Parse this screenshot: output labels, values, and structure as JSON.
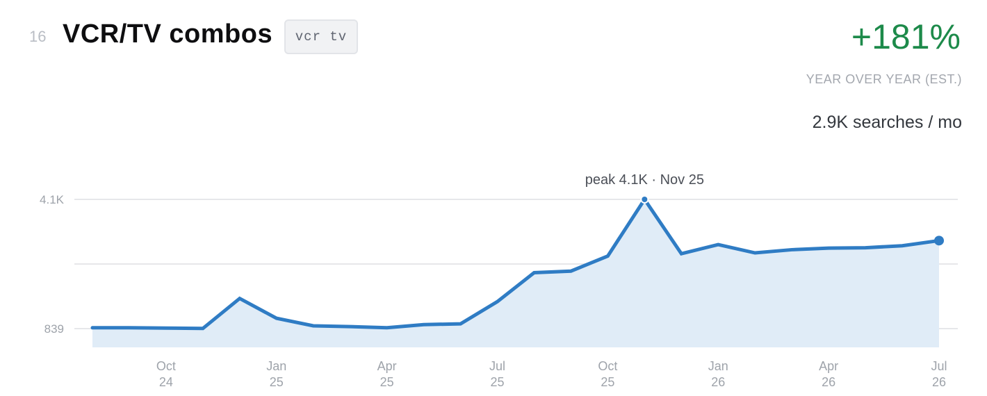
{
  "header": {
    "rank": "16",
    "title": "VCR/TV combos",
    "tag": "vcr tv"
  },
  "stats": {
    "growth": "+181%",
    "growth_label": "YEAR OVER YEAR  (EST.)",
    "searches": "2.9K searches / mo"
  },
  "colors": {
    "line": "#2f7cc4",
    "area": "#e0ecf7",
    "growth": "#1d8a4a",
    "grid": "#e6e7ea"
  },
  "chart_data": {
    "type": "area",
    "peak_label": "peak 4.1K · Nov 25",
    "y_ticks": [
      {
        "value": 4100,
        "label": "4.1K"
      },
      {
        "value": 839,
        "label": "839"
      }
    ],
    "x_ticks": [
      {
        "index": 2,
        "line1": "Oct",
        "line2": "24"
      },
      {
        "index": 5,
        "line1": "Jan",
        "line2": "25"
      },
      {
        "index": 8,
        "line1": "Apr",
        "line2": "25"
      },
      {
        "index": 11,
        "line1": "Jul",
        "line2": "25"
      },
      {
        "index": 14,
        "line1": "Oct",
        "line2": "25"
      },
      {
        "index": 17,
        "line1": "Jan",
        "line2": "26"
      },
      {
        "index": 20,
        "line1": "Apr",
        "line2": "26"
      },
      {
        "index": 23,
        "line1": "Jul",
        "line2": "26"
      }
    ],
    "series": [
      {
        "values": [
          860,
          862,
          852,
          843,
          1600,
          1100,
          910,
          890,
          860,
          940,
          960,
          1520,
          2250,
          2290,
          2670,
          4100,
          2730,
          2960,
          2750,
          2830,
          2870,
          2880,
          2930,
          3060
        ]
      }
    ],
    "ylim": [
      839,
      4100
    ],
    "grid": true
  }
}
